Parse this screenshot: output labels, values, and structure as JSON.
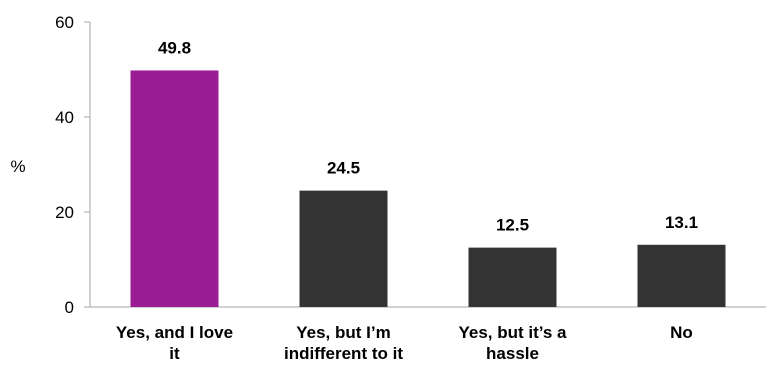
{
  "chart_data": {
    "type": "bar",
    "title": "",
    "xlabel": "",
    "ylabel": "%",
    "ylim": [
      0,
      60
    ],
    "yticks": [
      0,
      20,
      40,
      60
    ],
    "grid": false,
    "legend": "none",
    "categories": [
      [
        "Yes, and I love",
        "it"
      ],
      [
        "Yes, but I’m",
        "indifferent to it"
      ],
      [
        "Yes, but it’s a",
        "hassle"
      ],
      [
        "No"
      ]
    ],
    "values": [
      49.8,
      24.5,
      12.5,
      13.1
    ],
    "value_labels": [
      "49.8",
      "24.5",
      "12.5",
      "13.1"
    ],
    "colors": [
      "#9b1d96",
      "#333333",
      "#333333",
      "#333333"
    ],
    "axis_color": "#a6a6a6"
  }
}
